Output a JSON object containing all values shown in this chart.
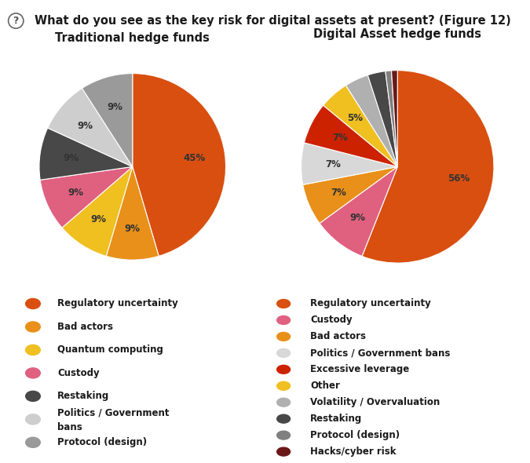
{
  "title": "What do you see as the key risk for digital assets at present? (Figure 12)",
  "left_title": "Traditional hedge funds",
  "right_title": "Digital Asset hedge funds",
  "left_values": [
    45,
    9,
    9,
    9,
    9,
    9,
    9
  ],
  "left_labels": [
    "45%",
    "9%",
    "9%",
    "9%",
    "9%",
    "9%",
    "9%"
  ],
  "left_colors": [
    "#D94F10",
    "#E8901A",
    "#F0BF20",
    "#E06080",
    "#484848",
    "#CECECE",
    "#9A9A9A"
  ],
  "left_legend": [
    "Regulatory uncertainty",
    "Bad actors",
    "Quantum computing",
    "Custody",
    "Restaking",
    "Politics / Government\nbans",
    "Protocol (design)"
  ],
  "right_values": [
    56,
    9,
    7,
    7,
    7,
    5,
    4,
    3,
    1,
    1
  ],
  "right_labels": [
    "56%",
    "9%",
    "7%",
    "7%",
    "7%",
    "5%",
    "",
    "",
    "",
    ""
  ],
  "right_colors": [
    "#D94F10",
    "#E06080",
    "#E8901A",
    "#D8D8D8",
    "#CC2200",
    "#F0BF20",
    "#B0B0B0",
    "#484848",
    "#808080",
    "#6B1818"
  ],
  "right_legend": [
    "Regulatory uncertainty",
    "Custody",
    "Bad actors",
    "Politics / Government bans",
    "Excessive leverage",
    "Other",
    "Volatility / Overvaluation",
    "Restaking",
    "Protocol (design)",
    "Hacks/cyber risk"
  ],
  "bg_color": "#FFFFFF",
  "title_fontsize": 10.5,
  "subtitle_fontsize": 10.5,
  "legend_fontsize": 8.5,
  "label_color": "#333333"
}
